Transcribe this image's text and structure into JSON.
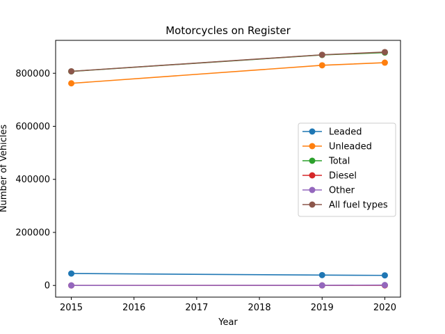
{
  "chart_data": {
    "type": "line",
    "title": "Motorcycles on Register",
    "xlabel": "Year",
    "ylabel": "Number of Vehicles",
    "x": [
      2015,
      2019,
      2020
    ],
    "xticks": [
      "2015",
      "2016",
      "2017",
      "2018",
      "2019",
      "2020"
    ],
    "yticks": [
      "0",
      "200000",
      "400000",
      "600000",
      "800000"
    ],
    "xlim": [
      2014.75,
      2020.25
    ],
    "ylim": [
      -44000,
      924000
    ],
    "grid": false,
    "legend_position": "center-right",
    "series": [
      {
        "name": "Leaded",
        "color": "#1f77b4",
        "values": [
          45000,
          39000,
          38000
        ]
      },
      {
        "name": "Unleaded",
        "color": "#ff7f0e",
        "values": [
          762000,
          830000,
          840000
        ]
      },
      {
        "name": "Total",
        "color": "#2ca02c",
        "values": [
          807000,
          869000,
          878000
        ]
      },
      {
        "name": "Diesel",
        "color": "#d62728",
        "values": [
          100,
          200,
          300
        ]
      },
      {
        "name": "Other",
        "color": "#9467bd",
        "values": [
          200,
          400,
          1500
        ]
      },
      {
        "name": "All fuel types",
        "color": "#8c564b",
        "values": [
          807300,
          869600,
          879800
        ]
      }
    ]
  }
}
